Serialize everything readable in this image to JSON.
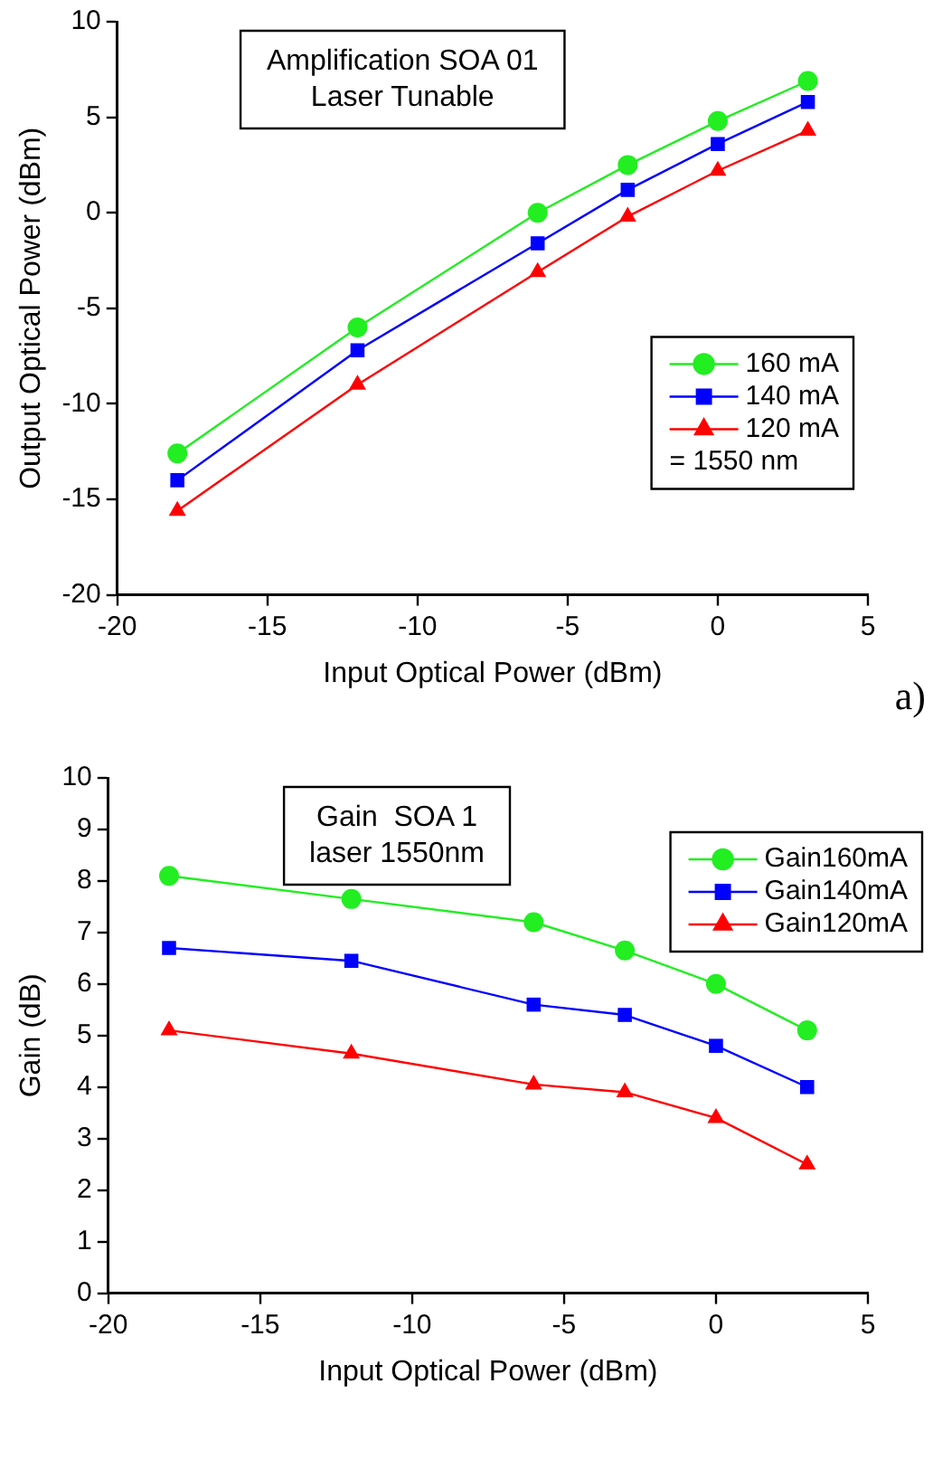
{
  "chart_data": [
    {
      "type": "line",
      "title": "Amplification SOA 01",
      "subtitle": "Laser Tunable",
      "xlabel": "Input Optical Power (dBm)",
      "ylabel": "Output Optical Power (dBm)",
      "legend_title": "= 1550 nm",
      "annotations": [
        "a)"
      ],
      "x": [
        -18,
        -12,
        -6,
        -3,
        0,
        3
      ],
      "series": [
        {
          "name": "160 mA",
          "color": "#22ee22",
          "marker": "circle",
          "values": [
            -12.6,
            -6.0,
            0.0,
            2.5,
            4.8,
            6.9
          ]
        },
        {
          "name": "140 mA",
          "color": "#0000ff",
          "marker": "square",
          "values": [
            -14.0,
            -7.2,
            -1.6,
            1.2,
            3.6,
            5.8
          ]
        },
        {
          "name": "120 mA",
          "color": "#ff0000",
          "marker": "triangle",
          "values": [
            -15.6,
            -9.0,
            -3.1,
            -0.2,
            2.2,
            4.3
          ]
        }
      ],
      "xlim": [
        -20,
        5
      ],
      "xticks": [
        -20,
        -15,
        -10,
        -5,
        0,
        5
      ],
      "ylim": [
        -20,
        10
      ],
      "yticks": [
        -20,
        -15,
        -10,
        -5,
        0,
        5,
        10
      ],
      "grid": false,
      "legend": "right"
    },
    {
      "type": "line",
      "title": "Gain  SOA 1",
      "subtitle": "laser 1550nm",
      "xlabel": "Input Optical Power (dBm)",
      "ylabel": "Gain (dB)",
      "x": [
        -18,
        -12,
        -6,
        -3,
        0,
        3
      ],
      "series": [
        {
          "name": "Gain160mA",
          "color": "#22ee22",
          "marker": "circle",
          "values": [
            8.1,
            7.65,
            7.2,
            6.65,
            6.0,
            5.1
          ]
        },
        {
          "name": "Gain140mA",
          "color": "#0000ff",
          "marker": "square",
          "values": [
            6.7,
            6.45,
            5.6,
            5.4,
            4.8,
            4.0
          ]
        },
        {
          "name": "Gain120mA",
          "color": "#ff0000",
          "marker": "triangle",
          "values": [
            5.1,
            4.65,
            4.05,
            3.9,
            3.4,
            2.5
          ]
        }
      ],
      "xlim": [
        -20,
        5
      ],
      "xticks": [
        -20,
        -15,
        -10,
        -5,
        0,
        5
      ],
      "ylim": [
        0,
        10
      ],
      "yticks": [
        0,
        1,
        2,
        3,
        4,
        5,
        6,
        7,
        8,
        9,
        10
      ],
      "grid": false,
      "legend": "top right"
    }
  ]
}
